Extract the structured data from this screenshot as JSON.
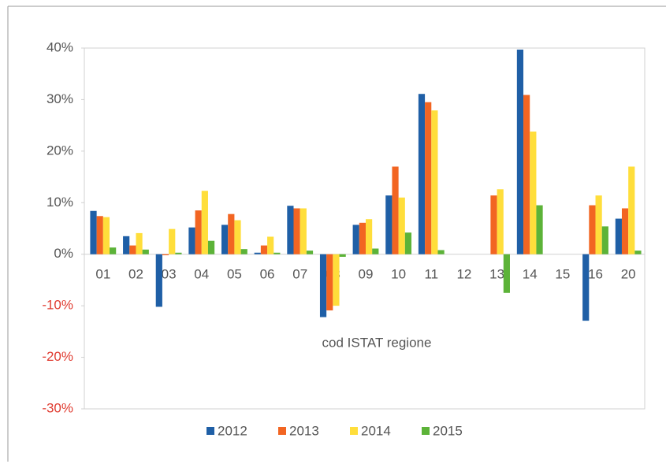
{
  "chart_data": {
    "type": "bar",
    "x_label": "cod ISTAT regione",
    "categories": [
      "01",
      "02",
      "03",
      "04",
      "05",
      "06",
      "07",
      "08",
      "09",
      "10",
      "11",
      "12",
      "13",
      "14",
      "15",
      "16",
      "20"
    ],
    "series": [
      {
        "name": "2012",
        "color": "#1f5fa6",
        "values": [
          8.4,
          3.5,
          -10.2,
          5.2,
          5.7,
          0.3,
          9.4,
          -12.2,
          5.7,
          11.4,
          31.1,
          null,
          null,
          39.7,
          null,
          -12.9,
          6.9
        ]
      },
      {
        "name": "2013",
        "color": "#f26522",
        "values": [
          7.4,
          1.7,
          -0.2,
          8.5,
          7.8,
          1.7,
          8.9,
          -10.9,
          6.1,
          17.0,
          29.5,
          null,
          11.4,
          30.9,
          null,
          9.5,
          8.9
        ]
      },
      {
        "name": "2014",
        "color": "#ffde3b",
        "values": [
          7.2,
          4.1,
          4.9,
          12.3,
          6.6,
          3.4,
          8.9,
          -10.0,
          6.8,
          11.0,
          27.9,
          null,
          12.6,
          23.8,
          null,
          11.4,
          17.0
        ]
      },
      {
        "name": "2015",
        "color": "#5cb338",
        "values": [
          1.3,
          0.9,
          0.3,
          2.6,
          1.0,
          0.3,
          0.7,
          -0.5,
          1.1,
          4.2,
          0.8,
          null,
          -7.5,
          9.5,
          null,
          5.4,
          0.7
        ]
      }
    ],
    "ylim": [
      -30,
      40
    ],
    "yticks": [
      {
        "value": -30,
        "label": "-30%"
      },
      {
        "value": -20,
        "label": "-20%"
      },
      {
        "value": -10,
        "label": "-10%"
      },
      {
        "value": 0,
        "label": "0%"
      },
      {
        "value": 10,
        "label": "10%"
      },
      {
        "value": 20,
        "label": "20%"
      },
      {
        "value": 30,
        "label": "30%"
      },
      {
        "value": 40,
        "label": "40%"
      }
    ],
    "negative_label_color": "#e03c31",
    "legend": "bottom"
  }
}
